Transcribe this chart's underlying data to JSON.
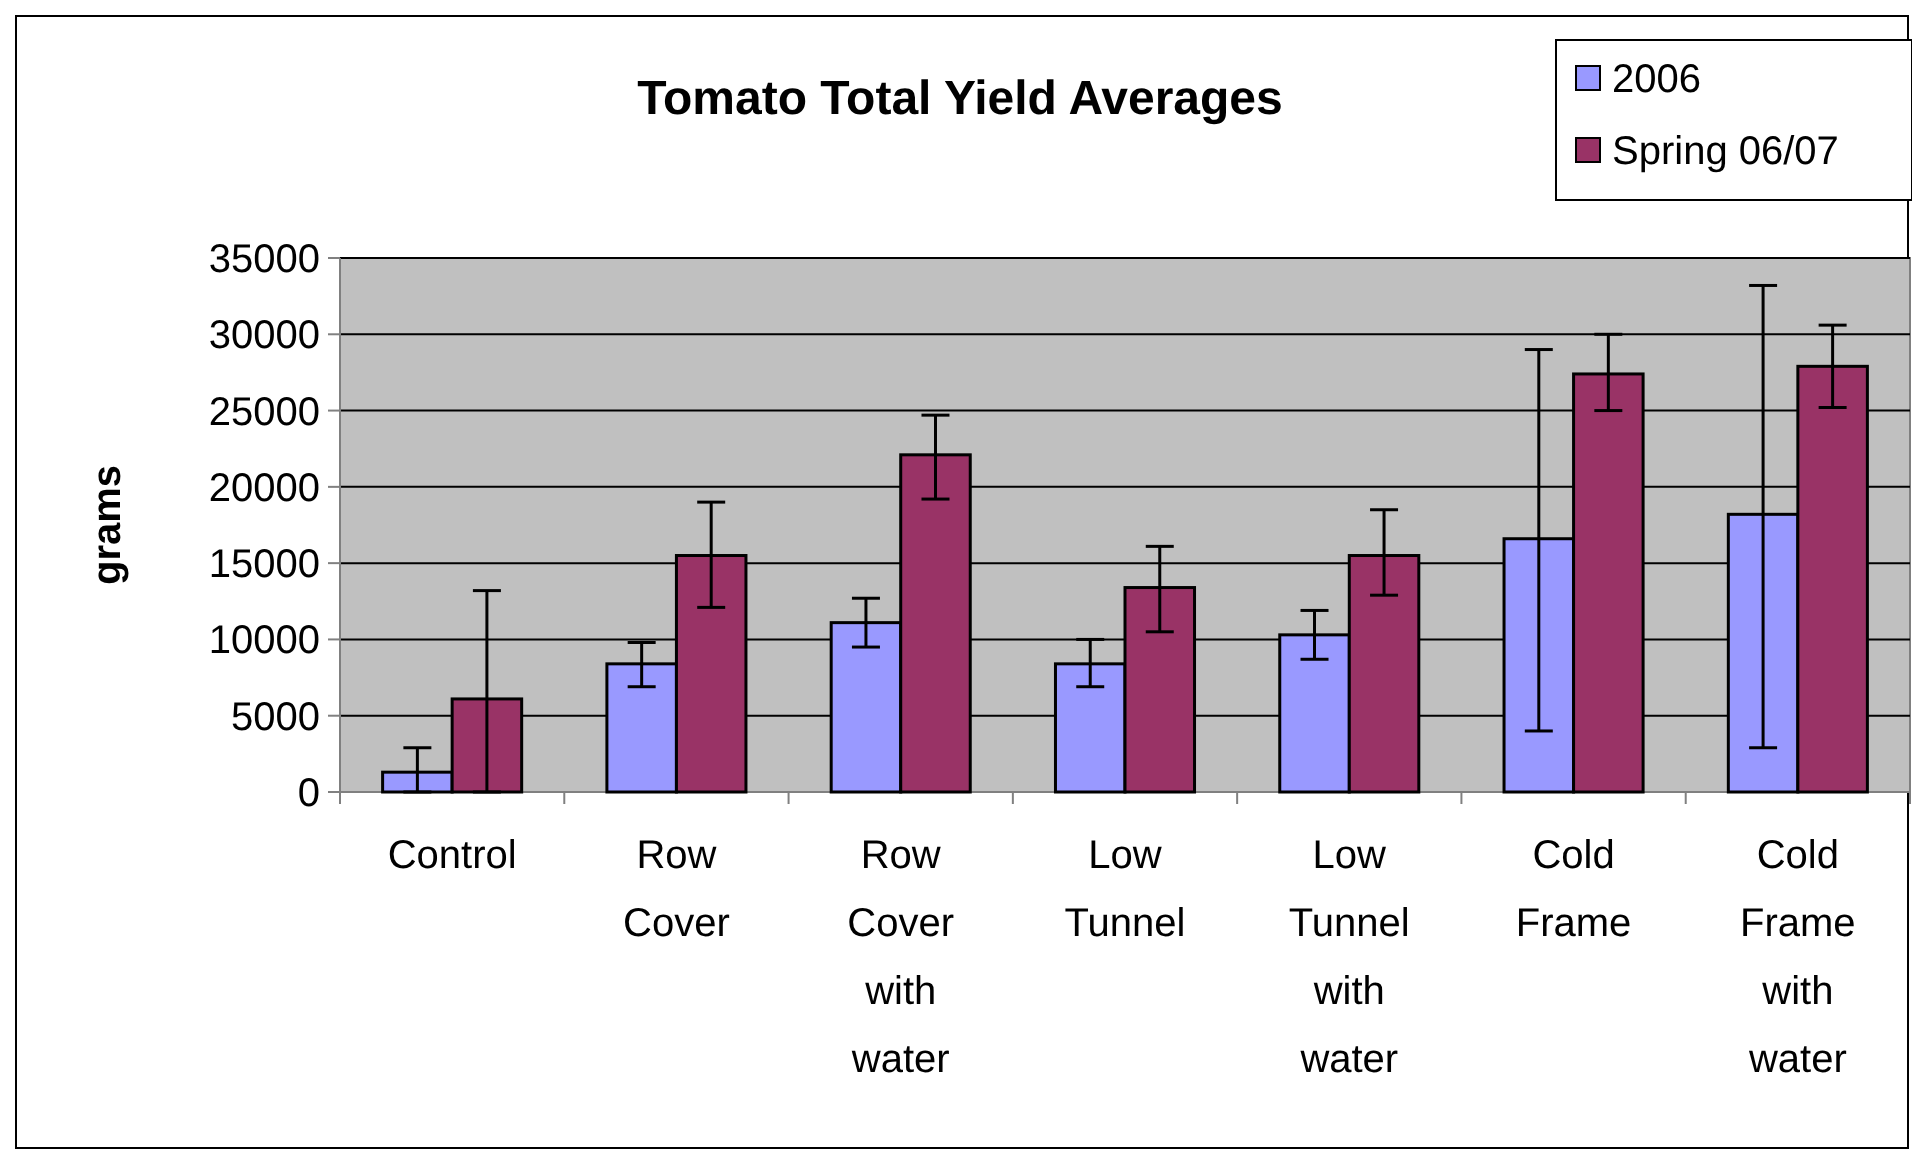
{
  "chart_data": {
    "type": "bar",
    "title": "Tomato Total Yield Averages",
    "ylabel": "grams",
    "categories": [
      "Control",
      "Row Cover",
      "Row Cover with water",
      "Low Tunnel",
      "Low Tunnel with water",
      "Cold Frame",
      "Cold Frame with water"
    ],
    "series": [
      {
        "name": "2006",
        "color": "#9999ff",
        "values": [
          1300,
          8400,
          11100,
          8400,
          10300,
          16600,
          18200
        ],
        "errors": [
          [
            0,
            2900
          ],
          [
            6900,
            9800
          ],
          [
            9500,
            12700
          ],
          [
            6900,
            10000
          ],
          [
            8700,
            11900
          ],
          [
            4000,
            29000
          ],
          [
            2900,
            33200
          ]
        ]
      },
      {
        "name": "Spring 06/07",
        "color": "#993366",
        "values": [
          6100,
          15500,
          22100,
          13400,
          15500,
          27400,
          27900
        ],
        "errors": [
          [
            0,
            13200
          ],
          [
            12100,
            19000
          ],
          [
            19200,
            24700
          ],
          [
            10500,
            16100
          ],
          [
            12900,
            18500
          ],
          [
            25000,
            30000
          ],
          [
            25200,
            30600
          ]
        ]
      }
    ],
    "ylim": [
      0,
      35000
    ],
    "yticks": [
      0,
      5000,
      10000,
      15000,
      20000,
      25000,
      30000,
      35000
    ],
    "grid": "y",
    "legend": "top right"
  }
}
